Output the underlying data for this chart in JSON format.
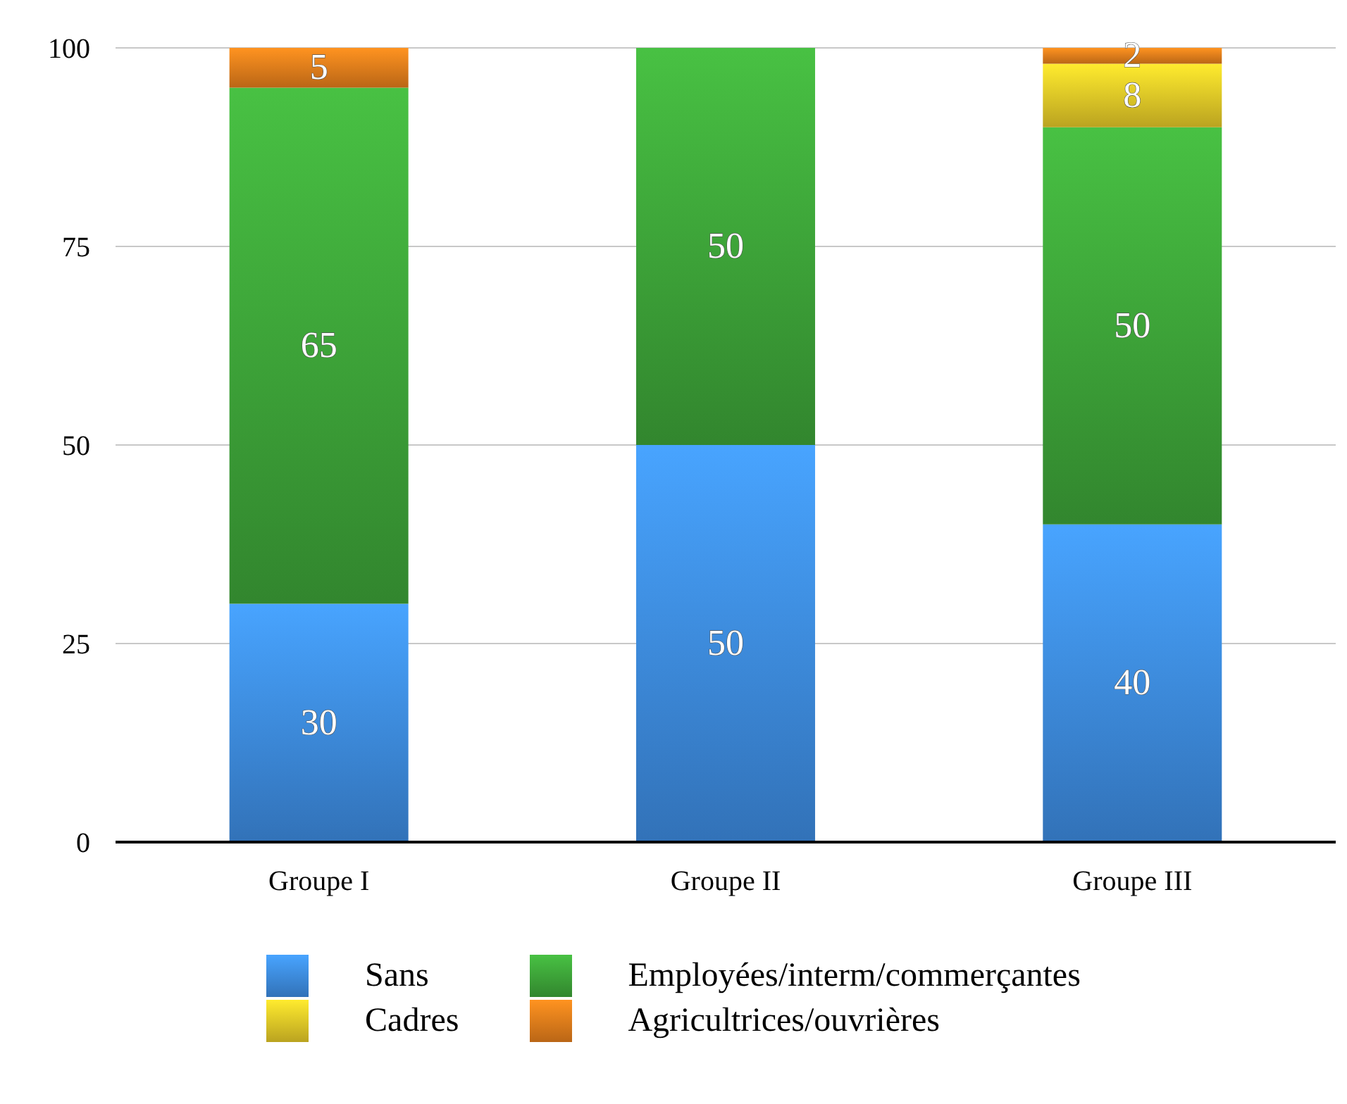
{
  "chart_data": {
    "type": "bar",
    "stacked": true,
    "categories": [
      "Groupe I",
      "Groupe II",
      "Groupe III"
    ],
    "series": [
      {
        "name": "Sans",
        "color": "#3f8fe6",
        "values": [
          30,
          50,
          40
        ],
        "value_labels": [
          "30",
          "50",
          "40"
        ]
      },
      {
        "name": "Employées/interm/commerçantes",
        "color": "#3fa83a",
        "values": [
          65,
          50,
          50
        ],
        "value_labels": [
          "65",
          "50",
          "50"
        ]
      },
      {
        "name": "Cadres",
        "color": "#e8cc28",
        "values": [
          null,
          null,
          8
        ],
        "value_labels": [
          null,
          null,
          "8"
        ]
      },
      {
        "name": "Agricultrices/ouvrières",
        "color": "#e8801c",
        "values": [
          5,
          null,
          2
        ],
        "value_labels": [
          "5",
          null,
          "2"
        ]
      }
    ],
    "ylim": [
      0,
      100
    ],
    "yticks": [
      0,
      25,
      50,
      75,
      100
    ],
    "grid": "y",
    "legend": "bottom"
  }
}
